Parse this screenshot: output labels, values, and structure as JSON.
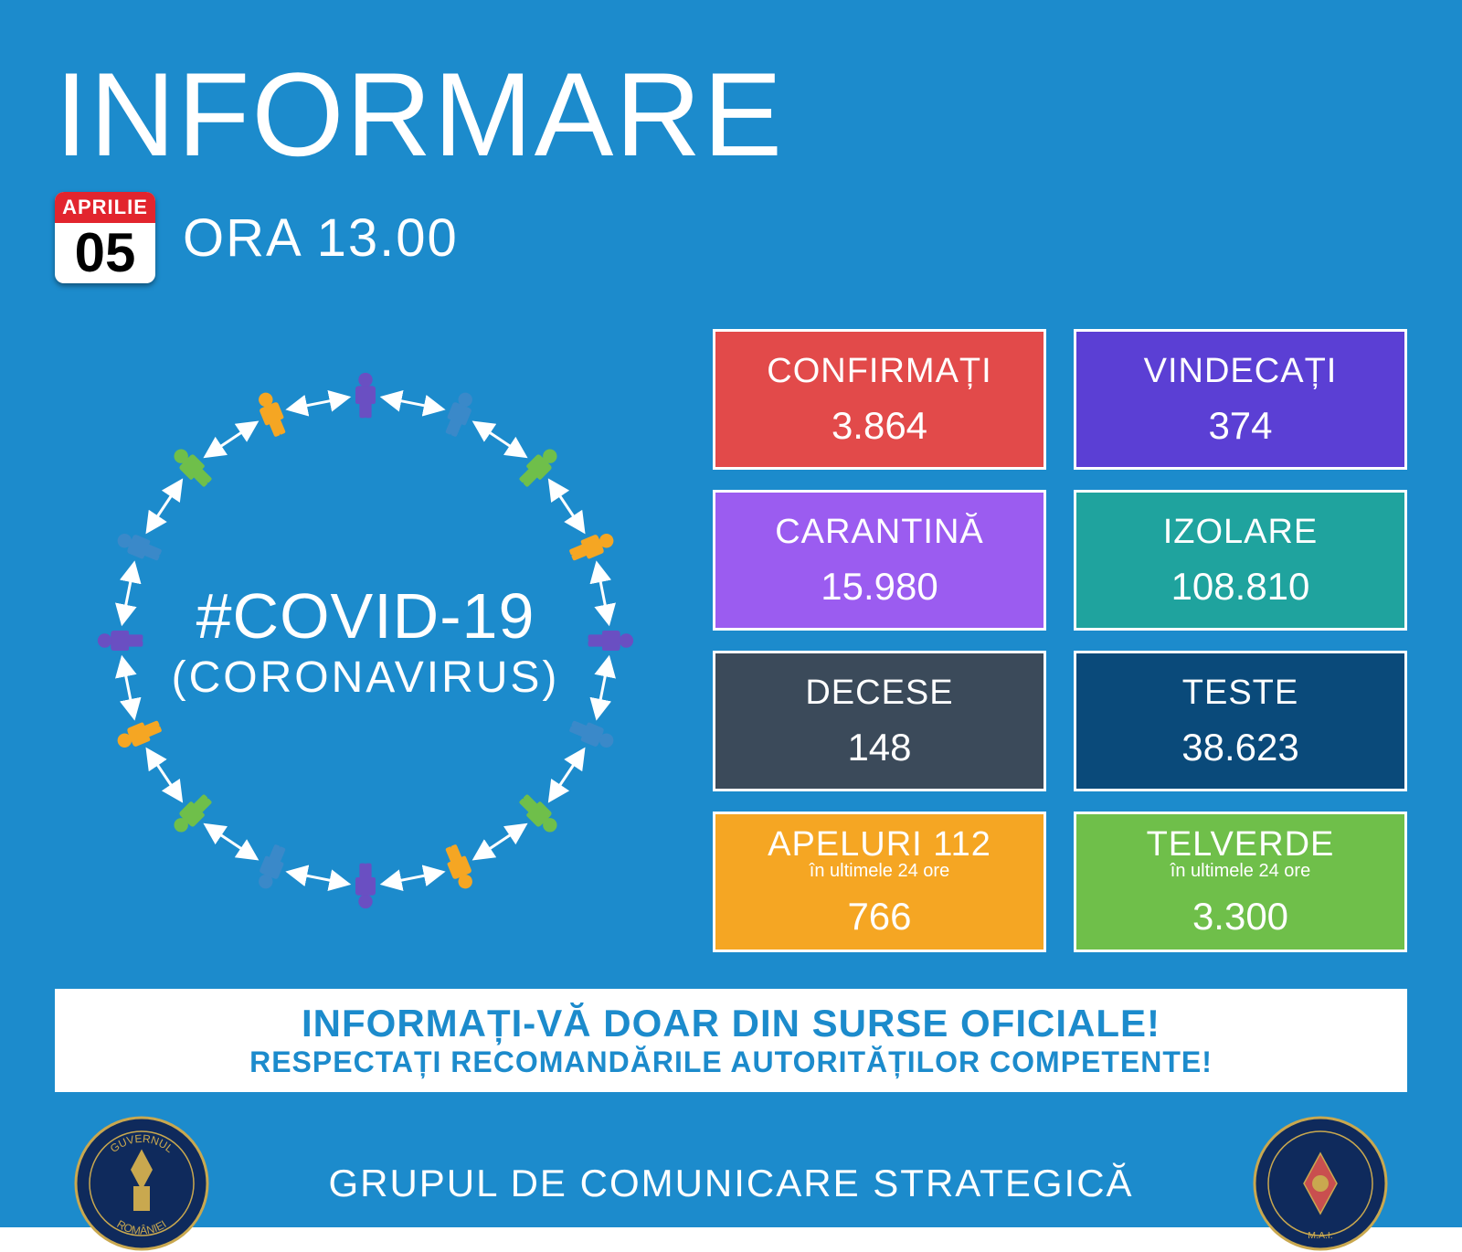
{
  "colors": {
    "background": "#1c8bcc",
    "text_white": "#ffffff",
    "banner_bg": "#ffffff",
    "banner_text": "#1c8bcc",
    "cal_red": "#e2252e",
    "seal_blue": "#0f2a5c",
    "seal_gold": "#c9a84f"
  },
  "header": {
    "title": "INFORMARE",
    "month": "APRILIE",
    "day": "05",
    "time": "ORA 13.00"
  },
  "circle": {
    "hashtag": "#COVID-19",
    "subtitle": "(CORONAVIRUS)",
    "person_colors": [
      "#6a4fc2",
      "#3a89c9",
      "#6fbf4a",
      "#f5a623",
      "#6a4fc2",
      "#3a89c9",
      "#6fbf4a",
      "#f5a623",
      "#6a4fc2",
      "#3a89c9",
      "#6fbf4a",
      "#f5a623",
      "#6a4fc2",
      "#3a89c9",
      "#6fbf4a",
      "#f5a623"
    ],
    "arrow_color": "#ffffff"
  },
  "stats": [
    {
      "label": "CONFIRMAȚI",
      "value": "3.864",
      "bg": "#e24a4a"
    },
    {
      "label": "VINDECAȚI",
      "value": "374",
      "bg": "#5b3fd4"
    },
    {
      "label": "CARANTINĂ",
      "value": "15.980",
      "bg": "#9b5cf0"
    },
    {
      "label": "IZOLARE",
      "value": "108.810",
      "bg": "#1fa39e"
    },
    {
      "label": "DECESE",
      "value": "148",
      "bg": "#3b4a5a"
    },
    {
      "label": "TESTE",
      "value": "38.623",
      "bg": "#0a4a7a"
    },
    {
      "label": "APELURI 112",
      "sub": "în ultimele 24 ore",
      "value": "766",
      "bg": "#f5a623"
    },
    {
      "label": "TELVERDE",
      "sub": "în ultimele 24 ore",
      "value": "3.300",
      "bg": "#6fbf4a"
    }
  ],
  "banner": {
    "line1": "INFORMAȚI-VĂ DOAR DIN SURSE OFICIALE!",
    "line2": "RESPECTAȚI RECOMANDĂRILE AUTORITĂȚILOR COMPETENTE!"
  },
  "footer": {
    "text": "GRUPUL DE COMUNICARE STRATEGICĂ"
  }
}
